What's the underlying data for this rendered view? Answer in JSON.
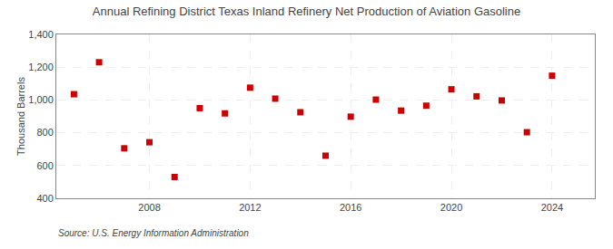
{
  "chart_data": {
    "type": "scatter",
    "title": "Annual Refining District Texas Inland Refinery Net Production of Aviation Gasoline",
    "ylabel": "Thousand Barrels",
    "source": "Source: U.S. Energy Information Administration",
    "x": [
      2005,
      2006,
      2007,
      2008,
      2009,
      2010,
      2011,
      2012,
      2013,
      2014,
      2015,
      2016,
      2017,
      2018,
      2019,
      2020,
      2021,
      2022,
      2023,
      2024
    ],
    "values": [
      1035,
      1230,
      705,
      742,
      530,
      950,
      918,
      1075,
      1008,
      925,
      660,
      898,
      1002,
      935,
      965,
      1065,
      1022,
      997,
      803,
      1148
    ],
    "color": "#cc0000",
    "marker": "square",
    "xlim": [
      2004.3,
      2025.7
    ],
    "xticks": [
      2008,
      2012,
      2016,
      2020,
      2024
    ],
    "ylim": [
      400,
      1400
    ],
    "yticks": [
      400,
      600,
      800,
      {
        "value": 1000,
        "label": "1,000"
      },
      {
        "value": 1200,
        "label": "1,200"
      },
      {
        "value": 1400,
        "label": "1,400"
      }
    ],
    "grid": true
  }
}
